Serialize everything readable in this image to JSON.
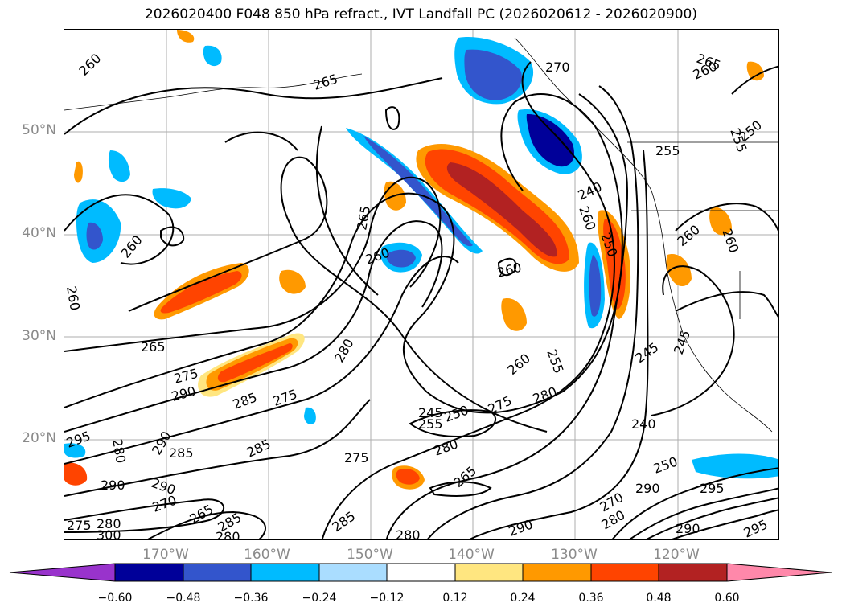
{
  "title": "2026020400 F048 850 hPa refract., IVT Landfall PC (2026020612 - 2026020900)",
  "map": {
    "lat_labels": [
      "50°N",
      "40°N",
      "30°N",
      "20°N"
    ],
    "lon_labels": [
      "170°W",
      "160°W",
      "150°W",
      "140°W",
      "130°W",
      "120°W"
    ],
    "contour_labels": [
      {
        "text": "260"
      },
      {
        "text": "265"
      },
      {
        "text": "270"
      },
      {
        "text": "265"
      },
      {
        "text": "260"
      },
      {
        "text": "255"
      },
      {
        "text": "255"
      },
      {
        "text": "250"
      },
      {
        "text": "240"
      },
      {
        "text": "260"
      },
      {
        "text": "250"
      },
      {
        "text": "260"
      },
      {
        "text": "260"
      },
      {
        "text": "265"
      },
      {
        "text": "260"
      },
      {
        "text": "260"
      },
      {
        "text": "260"
      },
      {
        "text": "260"
      },
      {
        "text": "265"
      },
      {
        "text": "275"
      },
      {
        "text": "290"
      },
      {
        "text": "285"
      },
      {
        "text": "275"
      },
      {
        "text": "280"
      },
      {
        "text": "260"
      },
      {
        "text": "255"
      },
      {
        "text": "245"
      },
      {
        "text": "245"
      },
      {
        "text": "280"
      },
      {
        "text": "275"
      },
      {
        "text": "245"
      },
      {
        "text": "255"
      },
      {
        "text": "250"
      },
      {
        "text": "240"
      },
      {
        "text": "295"
      },
      {
        "text": "280"
      },
      {
        "text": "290"
      },
      {
        "text": "285"
      },
      {
        "text": "285"
      },
      {
        "text": "275"
      },
      {
        "text": "280"
      },
      {
        "text": "265"
      },
      {
        "text": "290"
      },
      {
        "text": "290"
      },
      {
        "text": "270"
      },
      {
        "text": "265"
      },
      {
        "text": "285"
      },
      {
        "text": "280"
      },
      {
        "text": "285"
      },
      {
        "text": "280"
      },
      {
        "text": "290"
      },
      {
        "text": "270"
      },
      {
        "text": "280"
      },
      {
        "text": "250"
      },
      {
        "text": "290"
      },
      {
        "text": "295"
      },
      {
        "text": "290"
      },
      {
        "text": "295"
      },
      {
        "text": "275"
      },
      {
        "text": "280"
      },
      {
        "text": "300"
      }
    ]
  },
  "colorbar": {
    "ticks": [
      "−0.60",
      "−0.48",
      "−0.36",
      "−0.24",
      "−0.12",
      "0.12",
      "0.24",
      "0.36",
      "0.48",
      "0.60"
    ],
    "colors": [
      "#9933cc",
      "#000099",
      "#3355cc",
      "#00bbff",
      "#aaddff",
      "#ffffff",
      "#ffe680",
      "#ff9900",
      "#ff4400",
      "#b22222",
      "#ff88aa"
    ]
  }
}
